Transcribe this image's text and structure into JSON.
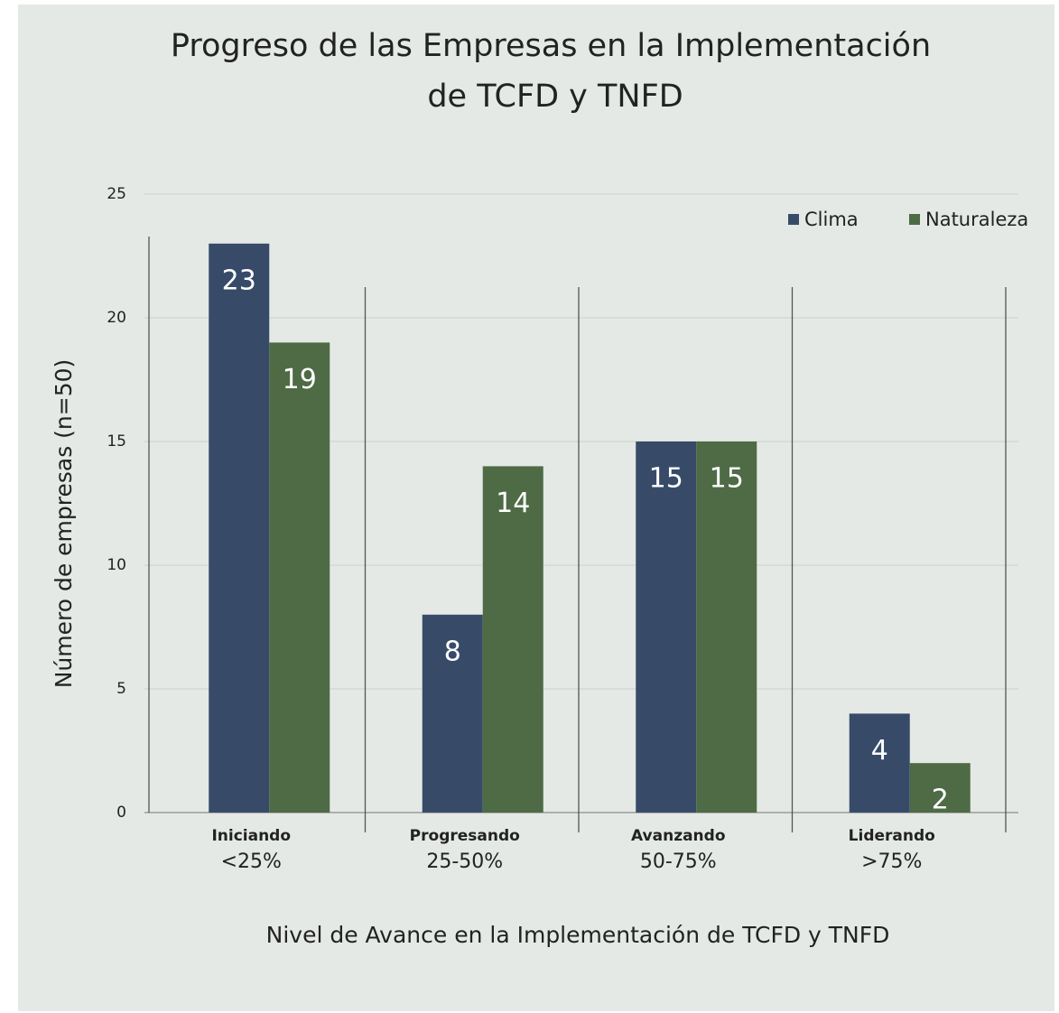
{
  "chart_data": {
    "type": "bar",
    "title": [
      "Progreso de las Empresas en la Implementación",
      "de TCFD y TNFD"
    ],
    "x_label": "Nivel de Avance en la Implementación de TCFD y TNFD",
    "y_label": "Número de empresas (n=50)",
    "categories": [
      "Iniciando",
      "Progresando",
      "Avanzando",
      "Liderando"
    ],
    "category_ranges": [
      "<25%",
      "25-50%",
      "50-75%",
      ">75%"
    ],
    "series": [
      {
        "name": "Clima",
        "color": "#374b69",
        "values": [
          23,
          8,
          15,
          4
        ]
      },
      {
        "name": "Naturaleza",
        "color": "#4e6b45",
        "values": [
          19,
          14,
          15,
          2
        ]
      }
    ],
    "ylim": [
      0,
      25
    ],
    "yticks": [
      0,
      5,
      10,
      15,
      20,
      25
    ],
    "grid": true,
    "legend": "top-right"
  }
}
